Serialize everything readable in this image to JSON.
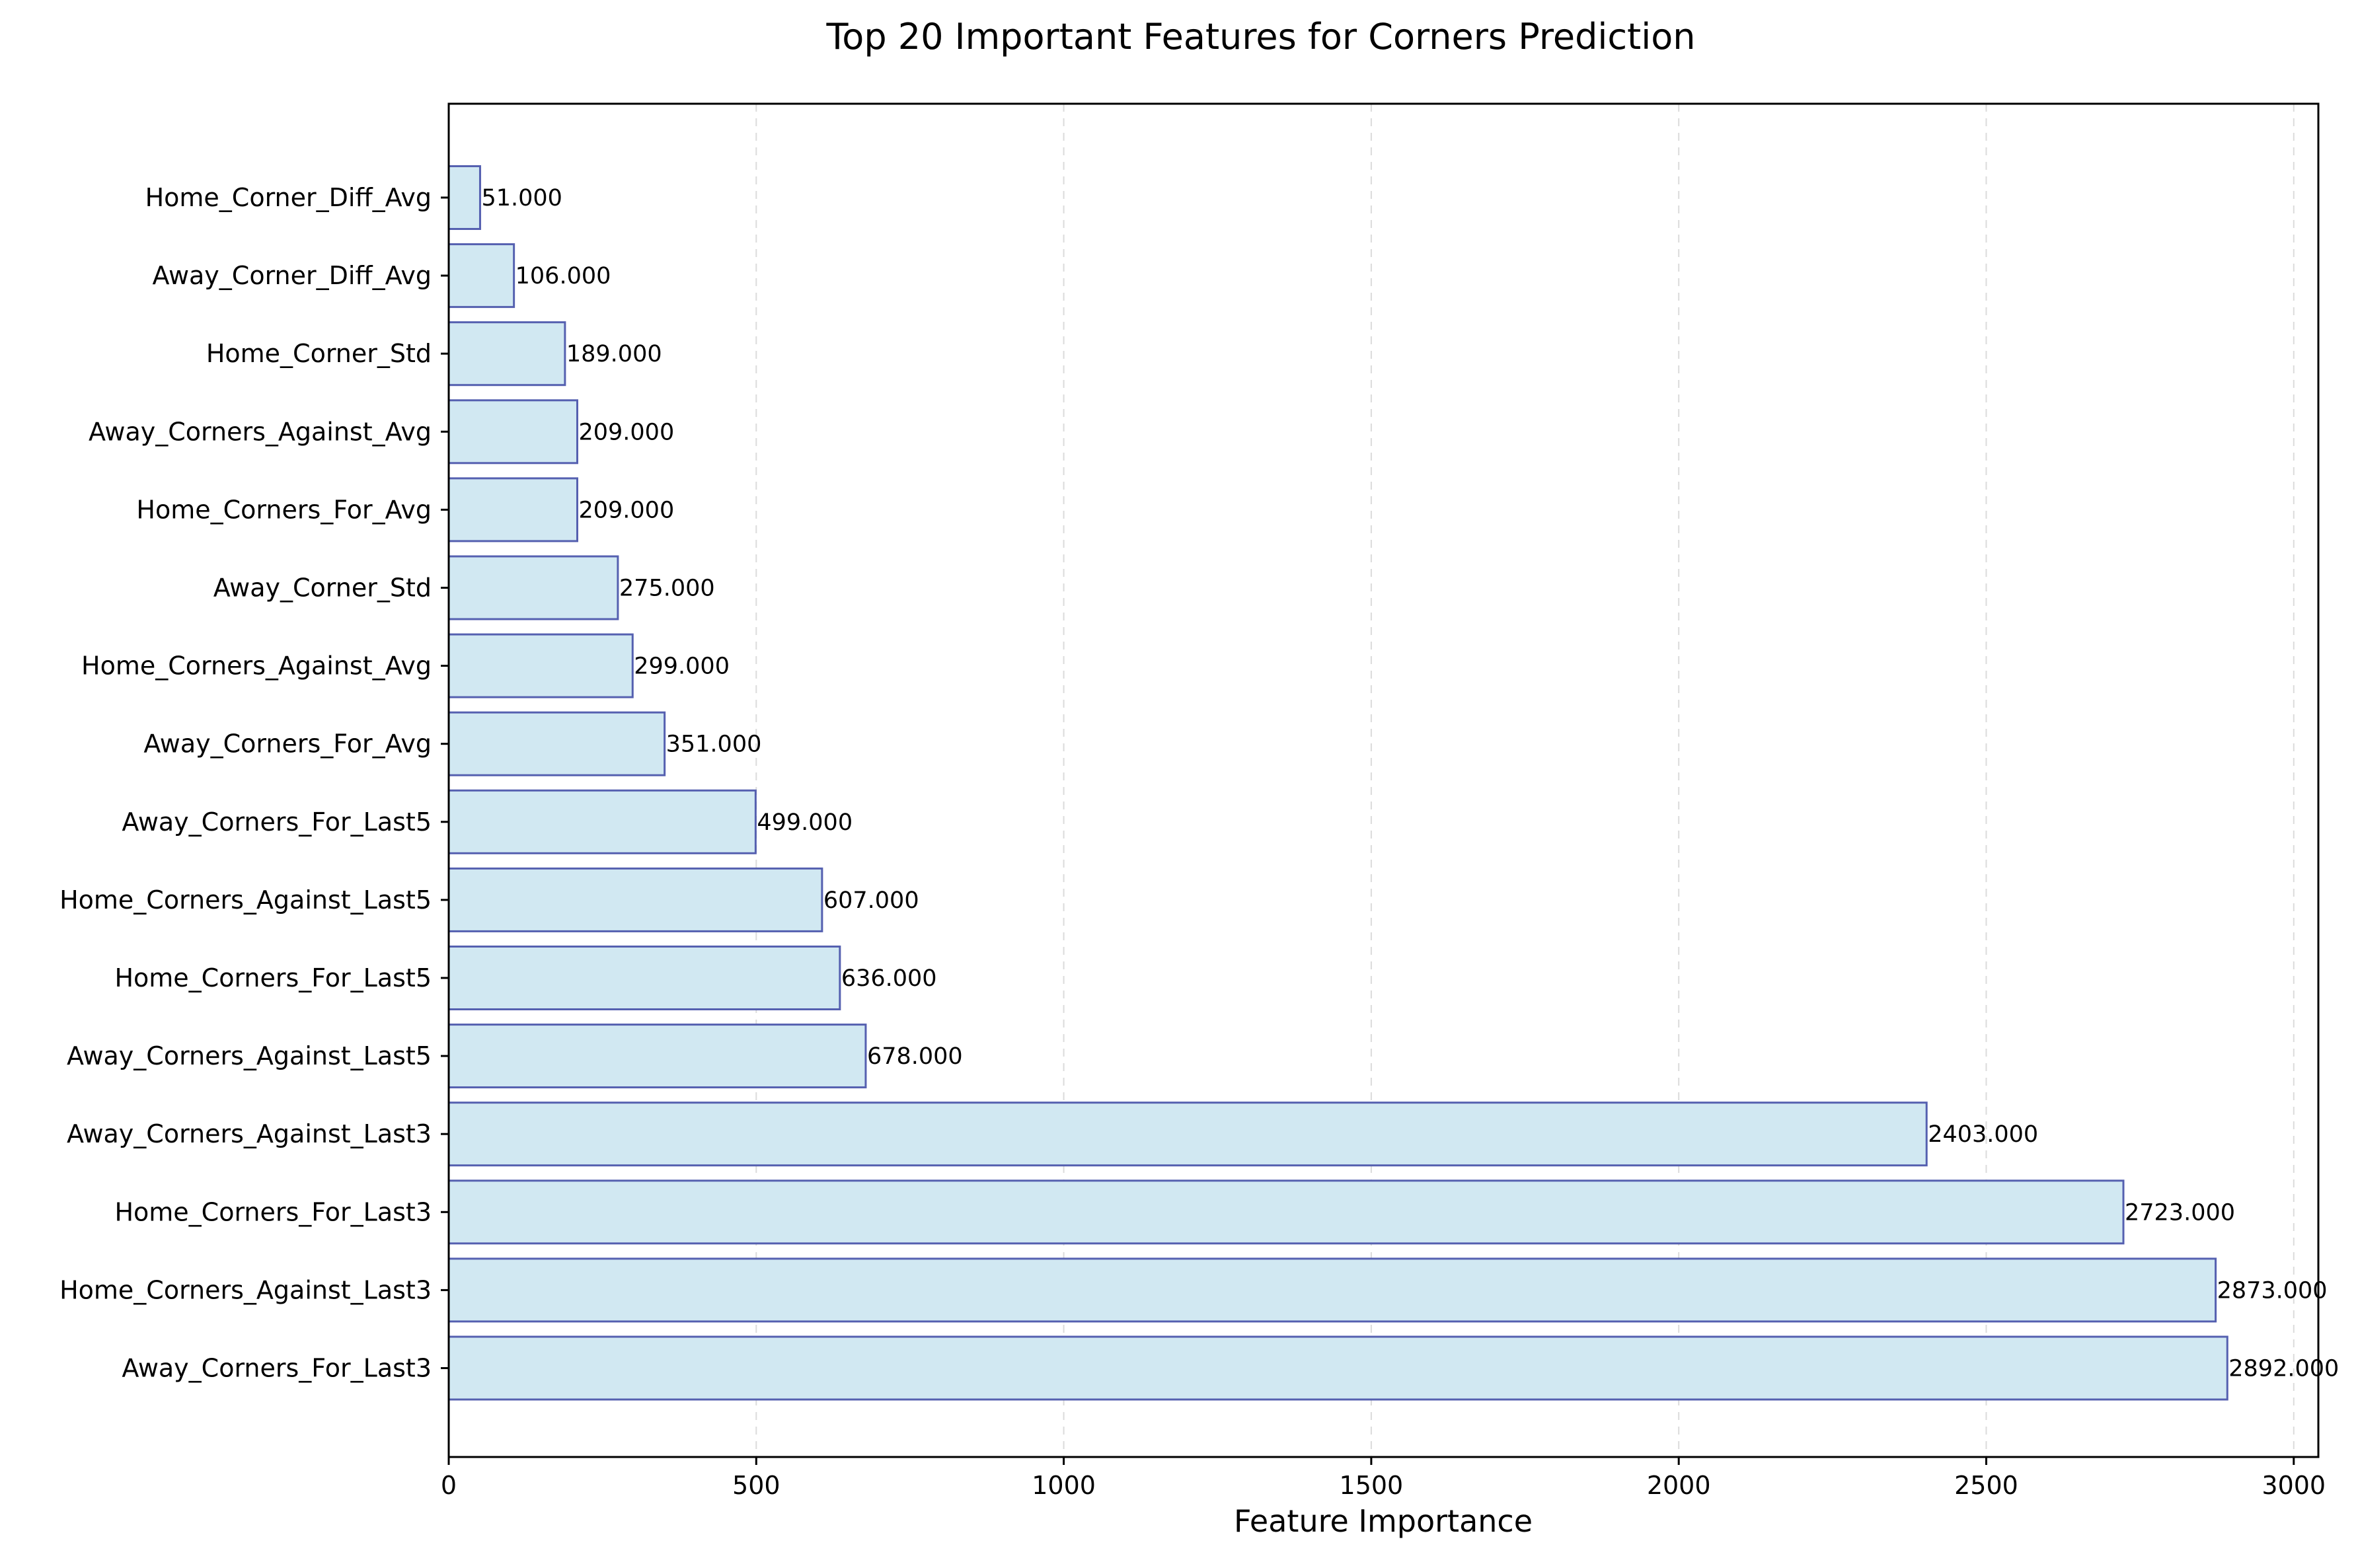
{
  "chart_data": {
    "type": "bar",
    "orientation": "horizontal",
    "title": "Top 20 Important Features for Corners Prediction",
    "xlabel": "Feature Importance",
    "ylabel": "",
    "xlim": [
      0,
      3040
    ],
    "xticks": [
      0,
      500,
      1000,
      1500,
      2000,
      2500,
      3000
    ],
    "grid": "x-dashed",
    "bar_fill": "#d1e8f2",
    "bar_edge": "#5560b0",
    "categories": [
      "Home_Corner_Diff_Avg",
      "Away_Corner_Diff_Avg",
      "Home_Corner_Std",
      "Away_Corners_Against_Avg",
      "Home_Corners_For_Avg",
      "Away_Corner_Std",
      "Home_Corners_Against_Avg",
      "Away_Corners_For_Avg",
      "Away_Corners_For_Last5",
      "Home_Corners_Against_Last5",
      "Home_Corners_For_Last5",
      "Away_Corners_Against_Last5",
      "Away_Corners_Against_Last3",
      "Home_Corners_For_Last3",
      "Home_Corners_Against_Last3",
      "Away_Corners_For_Last3"
    ],
    "values": [
      51,
      106,
      189,
      209,
      209,
      275,
      299,
      351,
      499,
      607,
      636,
      678,
      2403,
      2723,
      2873,
      2892
    ],
    "value_labels": [
      "51.000",
      "106.000",
      "189.000",
      "209.000",
      "209.000",
      "275.000",
      "299.000",
      "351.000",
      "499.000",
      "607.000",
      "636.000",
      "678.000",
      "2403.000",
      "2723.000",
      "2873.000",
      "2892.000"
    ]
  }
}
